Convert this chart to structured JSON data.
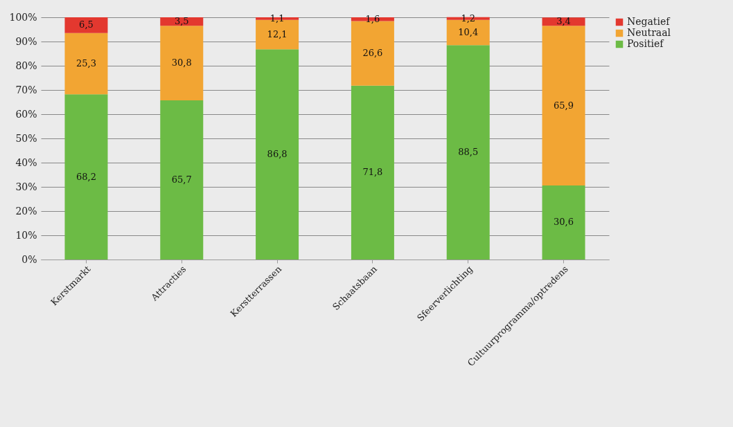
{
  "chart_data": {
    "type": "bar",
    "stacked": true,
    "categories": [
      "Kerstmarkt",
      "Attracties",
      "Kerstterrassen",
      "Schaatsbaan",
      "Sfeerverlichting",
      "Cultuurprogramma/optredens"
    ],
    "series": [
      {
        "name": "Positief",
        "color": "#6cbb45",
        "values": [
          68.2,
          65.7,
          86.8,
          71.8,
          88.5,
          30.6
        ],
        "value_labels": [
          "68,2",
          "65,7",
          "86,8",
          "71,8",
          "88,5",
          "30,6"
        ]
      },
      {
        "name": "Neutraal",
        "color": "#f2a533",
        "values": [
          25.3,
          30.8,
          12.1,
          26.6,
          10.4,
          65.9
        ],
        "value_labels": [
          "25,3",
          "30,8",
          "12,1",
          "26,6",
          "10,4",
          "65,9"
        ]
      },
      {
        "name": "Negatief",
        "color": "#e3382f",
        "values": [
          6.5,
          3.5,
          1.1,
          1.6,
          1.2,
          3.4
        ],
        "value_labels": [
          "6,5",
          "3,5",
          "1,1",
          "1,6",
          "1,2",
          "3,4"
        ]
      }
    ],
    "ylim": [
      0,
      100
    ],
    "yticks": [
      {
        "value": 0,
        "label": "0%"
      },
      {
        "value": 10,
        "label": "10%"
      },
      {
        "value": 20,
        "label": "20%"
      },
      {
        "value": 30,
        "label": "30%"
      },
      {
        "value": 40,
        "label": "40%"
      },
      {
        "value": 50,
        "label": "50%"
      },
      {
        "value": 60,
        "label": "60%"
      },
      {
        "value": 70,
        "label": "70%"
      },
      {
        "value": 80,
        "label": "80%"
      },
      {
        "value": 90,
        "label": "90%"
      },
      {
        "value": 100,
        "label": "100%"
      }
    ],
    "grid": "y",
    "legend": "right"
  }
}
